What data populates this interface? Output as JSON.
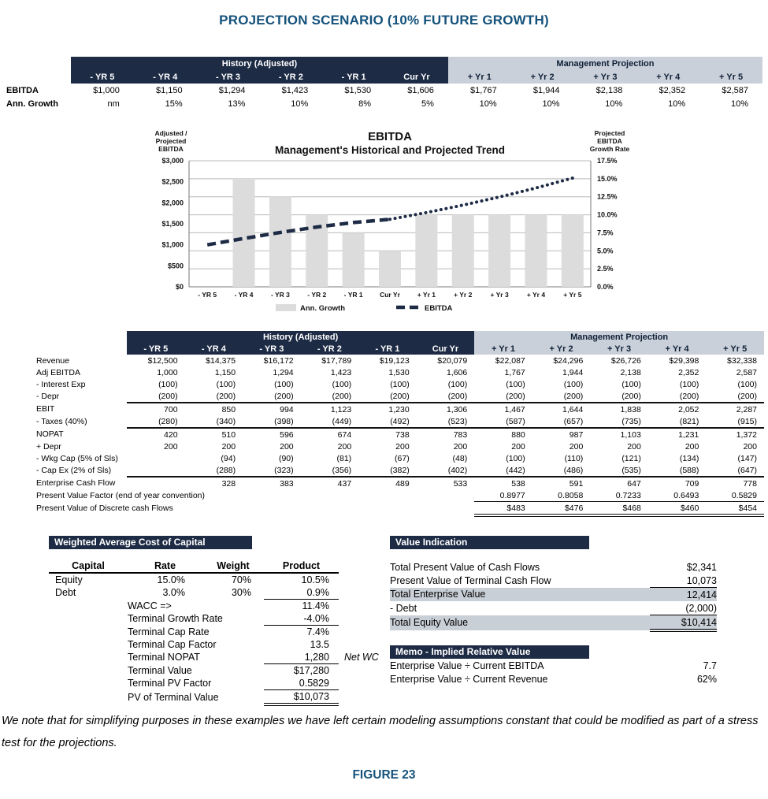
{
  "page": {
    "title": "PROJECTION SCENARIO (10% FUTURE GROWTH)",
    "footnote": "We note that for simplifying purposes in these examples we have left certain modeling assumptions constant that could be modified as part of a stress test for the projections.",
    "figure_caption": "FIGURE 23"
  },
  "colors": {
    "navy": "#1d2b45",
    "light_header": "#c9d0da",
    "title_blue": "#15527b",
    "chart_bar": "#dcdcdc",
    "highlight_band": "#c9cfd6"
  },
  "year_columns": {
    "history_label": "History (Adjusted)",
    "projection_label": "Management Projection",
    "history": [
      "- YR 5",
      "- YR 4",
      "- YR 3",
      "- YR 2",
      "- YR 1",
      "Cur Yr"
    ],
    "projection": [
      "+ Yr 1",
      "+ Yr 2",
      "+ Yr 3",
      "+ Yr 4",
      "+ Yr 5"
    ]
  },
  "summary_table": {
    "rows": [
      {
        "label": "EBITDA",
        "values": [
          "$1,000",
          "$1,150",
          "$1,294",
          "$1,423",
          "$1,530",
          "$1,606",
          "$1,767",
          "$1,944",
          "$2,138",
          "$2,352",
          "$2,587"
        ]
      },
      {
        "label": "Ann. Growth",
        "values": [
          "nm",
          "15%",
          "13%",
          "10%",
          "8%",
          "5%",
          "10%",
          "10%",
          "10%",
          "10%",
          "10%"
        ]
      }
    ]
  },
  "chart_data": {
    "type": "combo bar+line",
    "title": "EBITDA",
    "subtitle": "Management's Historical and Projected Trend",
    "left_axis_label_lines": [
      "Adjusted /",
      "Projected",
      "EBITDA"
    ],
    "right_axis_label_lines": [
      "Projected",
      "EBITDA",
      "Growth Rate"
    ],
    "categories": [
      "- YR 5",
      "- YR 4",
      "- YR 3",
      "- YR 2",
      "- YR 1",
      "Cur Yr",
      "+ Yr 1",
      "+ Yr 2",
      "+ Yr 3",
      "+ Yr 4",
      "+ Yr 5"
    ],
    "series": [
      {
        "name": "Ann. Growth",
        "type": "bar",
        "axis": "right",
        "values": [
          null,
          15,
          12.5,
          10,
          7.5,
          5,
          10,
          10,
          10,
          10,
          10
        ]
      },
      {
        "name": "EBITDA",
        "type": "line",
        "axis": "left",
        "history_points": 6,
        "values": [
          1000,
          1150,
          1294,
          1423,
          1530,
          1606,
          1767,
          1944,
          2138,
          2352,
          2587
        ]
      }
    ],
    "left_axis": {
      "min": 0,
      "max": 3000,
      "step": 500,
      "ticks": [
        "$0",
        "$500",
        "$1,000",
        "$1,500",
        "$2,000",
        "$2,500",
        "$3,000"
      ]
    },
    "right_axis": {
      "min": 0,
      "max": 17.5,
      "step": 2.5,
      "ticks": [
        "0.0%",
        "2.5%",
        "5.0%",
        "7.5%",
        "10.0%",
        "12.5%",
        "15.0%",
        "17.5%"
      ]
    },
    "legend_position": "bottom",
    "grid": true
  },
  "dcf_table": {
    "rows": [
      {
        "label": "Revenue",
        "values": [
          "$12,500",
          "$14,375",
          "$16,172",
          "$17,789",
          "$19,123",
          "$20,079",
          "$22,087",
          "$24,296",
          "$26,726",
          "$29,398",
          "$32,338"
        ]
      },
      {
        "label": "Adj EBITDA",
        "values": [
          "1,000",
          "1,150",
          "1,294",
          "1,423",
          "1,530",
          "1,606",
          "1,767",
          "1,944",
          "2,138",
          "2,352",
          "2,587"
        ]
      },
      {
        "label": "- Interest Exp",
        "values": [
          "(100)",
          "(100)",
          "(100)",
          "(100)",
          "(100)",
          "(100)",
          "(100)",
          "(100)",
          "(100)",
          "(100)",
          "(100)"
        ]
      },
      {
        "label": "- Depr",
        "values": [
          "(200)",
          "(200)",
          "(200)",
          "(200)",
          "(200)",
          "(200)",
          "(200)",
          "(200)",
          "(200)",
          "(200)",
          "(200)"
        ]
      },
      {
        "label": "EBIT",
        "values": [
          "700",
          "850",
          "994",
          "1,123",
          "1,230",
          "1,306",
          "1,467",
          "1,644",
          "1,838",
          "2,052",
          "2,287"
        ]
      },
      {
        "label": "- Taxes (40%)",
        "values": [
          "(280)",
          "(340)",
          "(398)",
          "(449)",
          "(492)",
          "(523)",
          "(587)",
          "(657)",
          "(735)",
          "(821)",
          "(915)"
        ]
      },
      {
        "label": "NOPAT",
        "values": [
          "420",
          "510",
          "596",
          "674",
          "738",
          "783",
          "880",
          "987",
          "1,103",
          "1,231",
          "1,372"
        ]
      },
      {
        "label": "+ Depr",
        "values": [
          "200",
          "200",
          "200",
          "200",
          "200",
          "200",
          "200",
          "200",
          "200",
          "200",
          "200"
        ]
      },
      {
        "label": "- Wkg Cap (5% of Sls)",
        "values": [
          "",
          "(94)",
          "(90)",
          "(81)",
          "(67)",
          "(48)",
          "(100)",
          "(110)",
          "(121)",
          "(134)",
          "(147)"
        ]
      },
      {
        "label": "- Cap Ex (2% of Sls)",
        "values": [
          "",
          "(288)",
          "(323)",
          "(356)",
          "(382)",
          "(402)",
          "(442)",
          "(486)",
          "(535)",
          "(588)",
          "(647)"
        ]
      },
      {
        "label": "Enterprise Cash Flow",
        "values": [
          "",
          "328",
          "383",
          "437",
          "489",
          "533",
          "538",
          "591",
          "647",
          "709",
          "778"
        ]
      },
      {
        "label": "Present Value Factor (end of year convention)",
        "values": [
          "",
          "",
          "",
          "",
          "",
          "",
          "0.8977",
          "0.8058",
          "0.7233",
          "0.6493",
          "0.5829"
        ]
      },
      {
        "label": "Present Value of Discrete cash Flows",
        "values": [
          "",
          "",
          "",
          "",
          "",
          "",
          "$483",
          "$476",
          "$468",
          "$460",
          "$454"
        ]
      }
    ]
  },
  "wacc": {
    "header": "Weighted Average Cost of Capital",
    "col_headers": [
      "Capital",
      "Rate",
      "Weight",
      "Product"
    ],
    "rows": [
      {
        "capital": "Equity",
        "rate": "15.0%",
        "weight": "70%",
        "product": "10.5%"
      },
      {
        "capital": "Debt",
        "rate": "3.0%",
        "weight": "30%",
        "product": "0.9%"
      },
      {
        "label": "WACC =>",
        "product": "11.4%"
      },
      {
        "label": "Terminal Growth Rate",
        "product": "-4.0%"
      },
      {
        "label": "Terminal Cap Rate",
        "product": "7.4%"
      },
      {
        "label": "Terminal Cap Factor",
        "product": "13.5"
      },
      {
        "label": "Terminal NOPAT",
        "product": "1,280",
        "note": "Net WC"
      },
      {
        "label": "Terminal Value",
        "product": "$17,280"
      },
      {
        "label": "Terminal PV Factor",
        "product": "0.5829"
      },
      {
        "label": "PV of Terminal Value",
        "product": "$10,073"
      }
    ]
  },
  "value_indication": {
    "header": "Value Indication",
    "rows": [
      {
        "label": "Total Present Value of Cash Flows",
        "value": "$2,341"
      },
      {
        "label": "Present Value of Terminal Cash Flow",
        "value": "10,073"
      },
      {
        "label": "Total Enterprise Value",
        "value": "12,414"
      },
      {
        "label": "- Debt",
        "value": "(2,000)"
      },
      {
        "label": "Total Equity Value",
        "value": "$10,414"
      }
    ],
    "memo_header": "Memo - Implied Relative Value",
    "memo_rows": [
      {
        "label": "Enterprise Value ÷ Current EBITDA",
        "value": "7.7"
      },
      {
        "label": "Enterprise Value ÷ Current Revenue",
        "value": "62%"
      }
    ]
  }
}
